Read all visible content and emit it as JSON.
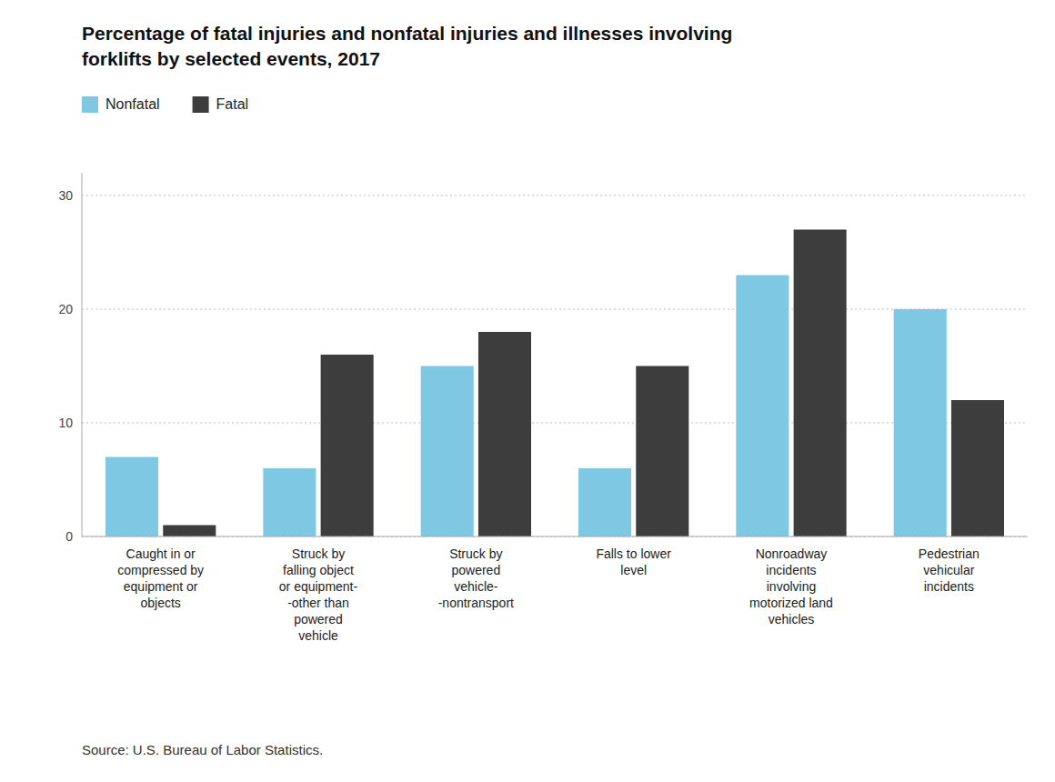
{
  "chart_data": {
    "type": "bar",
    "title": "Percentage of fatal injuries and nonfatal injuries and illnesses involving\nforklifts by selected events, 2017",
    "categories": [
      "Caught in or\ncompressed by\nequipment or\nobjects",
      "Struck by\nfalling object\nor equipment-\n-other than\npowered\nvehicle",
      "Struck by\npowered\nvehicle-\n-nontransport",
      "Falls to lower\nlevel",
      "Nonroadway\nincidents\ninvolving\nmotorized land\nvehicles",
      "Pedestrian\nvehicular\nincidents"
    ],
    "series": [
      {
        "name": "Nonfatal",
        "color": "#7EC8E3",
        "values": [
          7,
          6,
          15,
          6,
          23,
          20
        ]
      },
      {
        "name": "Fatal",
        "color": "#3d3d3d",
        "values": [
          1,
          16,
          18,
          15,
          27,
          12
        ]
      }
    ],
    "ylim": [
      0,
      32
    ],
    "yticks": [
      0,
      10,
      20,
      30
    ],
    "grid": true,
    "legend": "upper left",
    "source": "Source: U.S. Bureau of Labor Statistics."
  }
}
